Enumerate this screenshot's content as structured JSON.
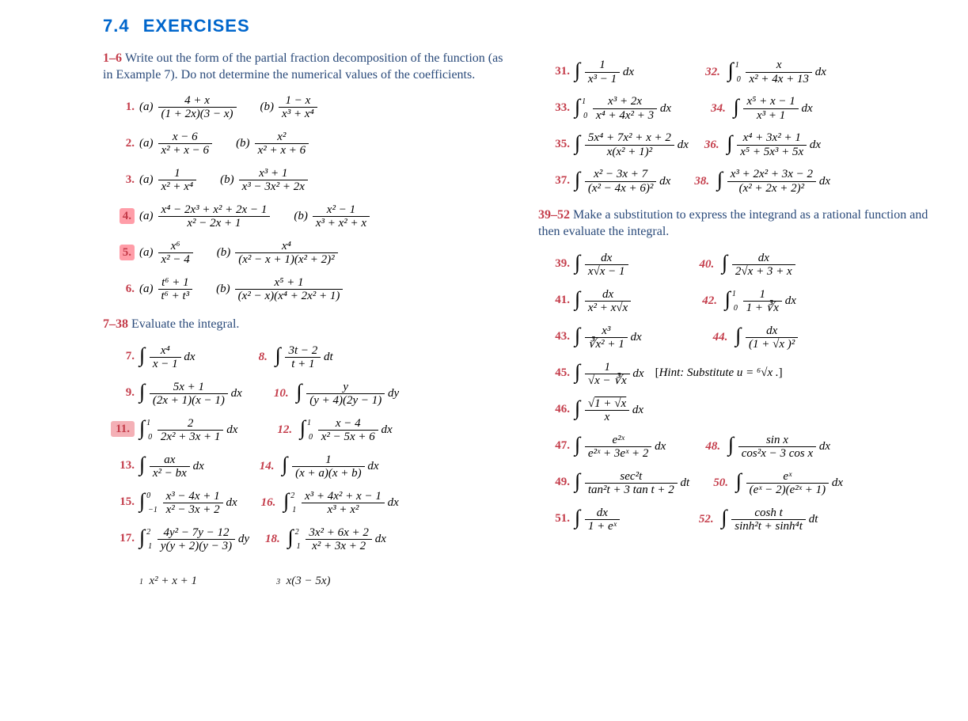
{
  "section": {
    "number": "7.4",
    "title": "EXERCISES"
  },
  "instructions": {
    "i1": {
      "range": "1–6",
      "text": "Write out the form of the partial fraction decomposition of the function (as in Example 7). Do not determine the numerical values of the coefficients."
    },
    "i2": {
      "range": "7–38",
      "text": "Evaluate the integral."
    },
    "i3": {
      "range": "39–52",
      "text": "Make a substitution to express the integrand as a rational function and then evaluate the integral."
    }
  },
  "exercises": {
    "e1a_num": "4 + x",
    "e1a_den": "(1 + 2x)(3 − x)",
    "e1b_num": "1 − x",
    "e1b_den": "x³ + x⁴",
    "e2a_num": "x − 6",
    "e2a_den": "x² + x − 6",
    "e2b_num": "x²",
    "e2b_den": "x² + x + 6",
    "e3a_num": "1",
    "e3a_den": "x² + x⁴",
    "e3b_num": "x³ + 1",
    "e3b_den": "x³ − 3x² + 2x",
    "e4a_num": "x⁴ − 2x³ + x² + 2x − 1",
    "e4a_den": "x² − 2x + 1",
    "e4b_num": "x² − 1",
    "e4b_den": "x³ + x² + x",
    "e5a_num": "x⁶",
    "e5a_den": "x² − 4",
    "e5b_num": "x⁴",
    "e5b_den": "(x² − x + 1)(x² + 2)²",
    "e6a_num": "t⁶ + 1",
    "e6a_den": "t⁶ + t³",
    "e6b_num": "x⁵ + 1",
    "e6b_den": "(x² − x)(x⁴ + 2x² + 1)",
    "e7_num": "x⁴",
    "e7_den": "x − 1",
    "e7_dx": "dx",
    "e8_num": "3t − 2",
    "e8_den": "t + 1",
    "e8_dx": "dt",
    "e9_num": "5x + 1",
    "e9_den": "(2x + 1)(x − 1)",
    "e9_dx": "dx",
    "e10_num": "y",
    "e10_den": "(y + 4)(2y − 1)",
    "e10_dx": "dy",
    "e11_lo": "0",
    "e11_hi": "1",
    "e11_num": "2",
    "e11_den": "2x² + 3x + 1",
    "e11_dx": "dx",
    "e12_lo": "0",
    "e12_hi": "1",
    "e12_num": "x − 4",
    "e12_den": "x² − 5x + 6",
    "e12_dx": "dx",
    "e13_num": "ax",
    "e13_den": "x² − bx",
    "e13_dx": "dx",
    "e14_num": "1",
    "e14_den": "(x + a)(x + b)",
    "e14_dx": "dx",
    "e15_lo": "−1",
    "e15_hi": "0",
    "e15_num": "x³ − 4x + 1",
    "e15_den": "x² − 3x + 2",
    "e15_dx": "dx",
    "e16_lo": "1",
    "e16_hi": "2",
    "e16_num": "x³ + 4x² + x − 1",
    "e16_den": "x³ + x²",
    "e16_dx": "dx",
    "e17_lo": "1",
    "e17_hi": "2",
    "e17_num": "4y² − 7y − 12",
    "e17_den": "y(y + 2)(y − 3)",
    "e17_dx": "dy",
    "e18_lo": "1",
    "e18_hi": "2",
    "e18_num": "3x² + 6x + 2",
    "e18_den": "x² + 3x + 2",
    "e18_dx": "dx",
    "e19_frag_num": "x² + x + 1",
    "e20_frag_num": "x(3 − 5x)",
    "e31_num": "1",
    "e31_den": "x³ − 1",
    "e31_dx": "dx",
    "e32_lo": "0",
    "e32_hi": "1",
    "e32_num": "x",
    "e32_den": "x² + 4x + 13",
    "e32_dx": "dx",
    "e33_lo": "0",
    "e33_hi": "1",
    "e33_num": "x³ + 2x",
    "e33_den": "x⁴ + 4x² + 3",
    "e33_dx": "dx",
    "e34_num": "x⁵ + x − 1",
    "e34_den": "x³ + 1",
    "e34_dx": "dx",
    "e35_num": "5x⁴ + 7x² + x + 2",
    "e35_den": "x(x² + 1)²",
    "e35_dx": "dx",
    "e36_num": "x⁴ + 3x² + 1",
    "e36_den": "x⁵ + 5x³ + 5x",
    "e36_dx": "dx",
    "e37_num": "x² − 3x + 7",
    "e37_den": "(x² − 4x + 6)²",
    "e37_dx": "dx",
    "e38_num": "x³ + 2x² + 3x − 2",
    "e38_den": "(x² + 2x + 2)²",
    "e38_dx": "dx",
    "e39_num": "dx",
    "e39_den_html": "x√<span class='ov'>x − 1</span>",
    "e40_num": "dx",
    "e40_den_html": "2√<span class='ov'>x + 3</span> + x",
    "e41_num": "dx",
    "e41_den_html": "x² + x√<span class='ov'>x</span>",
    "e42_lo": "0",
    "e42_hi": "1",
    "e42_num": "1",
    "e42_den_html": "1 + ∛<span class='ov'>x</span>",
    "e42_dx": "dx",
    "e43_num": "x³",
    "e43_den_html": "∛<span class='ov'>x² + 1</span>",
    "e43_dx": "dx",
    "e44_num": "dx",
    "e44_den_html": "(1 + √<span class='ov'>x</span> )²",
    "e45_num": "1",
    "e45_den_html": "√<span class='ov'>x</span> − ∛<span class='ov'>x</span>",
    "e45_dx": "dx",
    "e45_hint": "Hint: Substitute u = ⁶√x .",
    "e46_num_html": "√<span class='ov'>1 + √<span class=\"ov\">x</span></span>",
    "e46_den": "x",
    "e46_dx": "dx",
    "e47_num": "e²ˣ",
    "e47_den": "e²ˣ + 3eˣ + 2",
    "e47_dx": "dx",
    "e48_num": "sin x",
    "e48_den": "cos²x − 3 cos x",
    "e48_dx": "dx",
    "e49_num": "sec²t",
    "e49_den": "tan²t + 3 tan t + 2",
    "e49_dx": "dt",
    "e50_num": "eˣ",
    "e50_den": "(eˣ − 2)(e²ˣ + 1)",
    "e50_dx": "dx",
    "e51_num": "dx",
    "e51_den": "1 + eˣ",
    "e52_num": "cosh t",
    "e52_den": "sinh²t + sinh⁴t",
    "e52_dx": "dt"
  },
  "colors": {
    "heading": "#0066cc",
    "exercise_num": "#c43c4a",
    "instruction_text": "#2a4a7a",
    "highlight_bg": "#ff9da8"
  },
  "typography": {
    "heading_family": "Arial, sans-serif",
    "heading_size_pt": 16,
    "body_family": "Times New Roman",
    "body_size_pt": 11
  }
}
